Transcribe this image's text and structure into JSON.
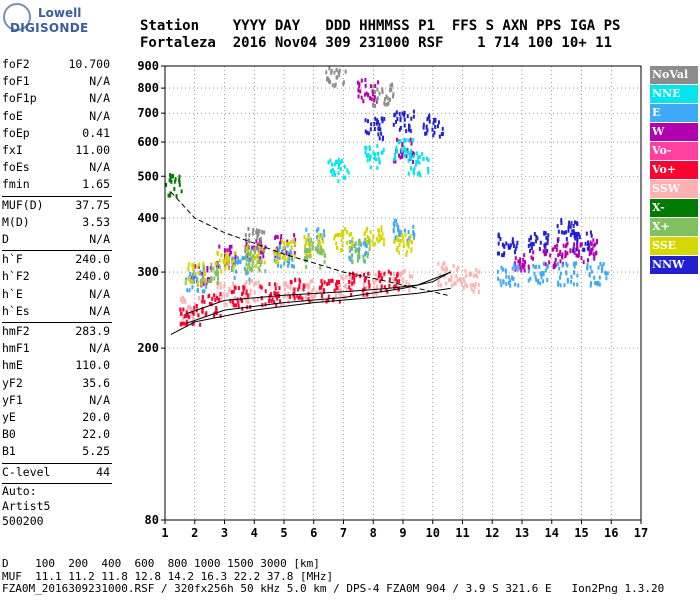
{
  "logo": {
    "line1": "Lowell",
    "line2": "DIGISONDE"
  },
  "header": {
    "labels": "Station    YYYY DAY   DDD HHMMSS P1  FFS S AXN PPS IGA PS",
    "values": "Fortaleza  2016 Nov04 309 231000 RSF    1 714 100 10+ 11"
  },
  "params": {
    "group1": [
      {
        "key": "foF2",
        "val": "10.700"
      },
      {
        "key": "foF1",
        "val": "N/A"
      },
      {
        "key": "foF1p",
        "val": "N/A"
      },
      {
        "key": "foE",
        "val": "N/A"
      },
      {
        "key": "foEp",
        "val": "0.41"
      },
      {
        "key": "fxI",
        "val": "11.00"
      },
      {
        "key": "foEs",
        "val": "N/A"
      },
      {
        "key": "fmin",
        "val": "1.65"
      }
    ],
    "group2": [
      {
        "key": "MUF(D)",
        "val": "37.75"
      },
      {
        "key": "M(D)",
        "val": "3.53"
      },
      {
        "key": "D",
        "val": "N/A"
      }
    ],
    "group3": [
      {
        "key": "h`F",
        "val": "240.0"
      },
      {
        "key": "h`F2",
        "val": "240.0"
      },
      {
        "key": "h`E",
        "val": "N/A"
      },
      {
        "key": "h`Es",
        "val": "N/A"
      }
    ],
    "group4": [
      {
        "key": "hmF2",
        "val": "283.9"
      },
      {
        "key": "hmF1",
        "val": "N/A"
      },
      {
        "key": "hmE",
        "val": "110.0"
      },
      {
        "key": "yF2",
        "val": "35.6"
      },
      {
        "key": "yF1",
        "val": "N/A"
      },
      {
        "key": "yE",
        "val": "20.0"
      },
      {
        "key": "B0",
        "val": "22.0"
      },
      {
        "key": "B1",
        "val": "5.25"
      }
    ],
    "clevel": {
      "key": "C-level",
      "val": "44"
    }
  },
  "auto": {
    "line1": "Auto:",
    "line2": "Artist5",
    "line3": "500200"
  },
  "legend": [
    {
      "label": "NoVal",
      "color": "#8c8c8c"
    },
    {
      "label": "NNE",
      "color": "#00e5ee"
    },
    {
      "label": "E",
      "color": "#3fa9f5"
    },
    {
      "label": "W",
      "color": "#b000b0"
    },
    {
      "label": "Vo-",
      "color": "#ff40a0"
    },
    {
      "label": "Vo+",
      "color": "#ff0030"
    },
    {
      "label": "SSW",
      "color": "#ffb0b0"
    },
    {
      "label": "X-",
      "color": "#007a00"
    },
    {
      "label": "X+",
      "color": "#80c060"
    },
    {
      "label": "SSE",
      "color": "#d6d600"
    },
    {
      "label": "NNW",
      "color": "#2020d0"
    }
  ],
  "footer": {
    "line1": "D    100  200  400  600  800 1000 1500 3000 [km]",
    "line2": "MUF  11.1 11.2 11.8 12.8 14.2 16.3 22.2 37.8 [MHz]",
    "line3": "FZA0M_2016309231000.RSF / 320fx256h 50 kHz 5.0 km / DPS-4 FZA0M 904 / 3.9 S 321.6 E   Ion2Png 1.3.20"
  },
  "chart_data": {
    "type": "scatter",
    "xlim": [
      1,
      17
    ],
    "ylim": [
      80,
      900
    ],
    "y_scale": "log",
    "x_ticks": [
      1,
      2,
      3,
      4,
      5,
      6,
      7,
      8,
      9,
      10,
      11,
      12,
      13,
      14,
      15,
      16,
      17
    ],
    "y_ticks": [
      80,
      200,
      300,
      400,
      500,
      600,
      700,
      800,
      900
    ],
    "grid": true,
    "legend_position": "right",
    "series": [
      {
        "name": "SSW",
        "color": "#ffb0b0",
        "x": [
          1.8,
          3,
          4,
          5,
          6,
          7,
          8,
          9,
          10.5,
          11.2
        ],
        "y": [
          250,
          270,
          275,
          270,
          275,
          280,
          285,
          290,
          300,
          290
        ]
      },
      {
        "name": "Vo+",
        "color": "#ff0030",
        "x": [
          1.8,
          2.5,
          3.5,
          4.5,
          5.5,
          6.5,
          7.5,
          8.5
        ],
        "y": [
          240,
          255,
          265,
          270,
          275,
          275,
          285,
          290
        ]
      },
      {
        "name": "W",
        "color": "#b000b0",
        "x": [
          2.2,
          3,
          4,
          5,
          7.8,
          9,
          13,
          14,
          14.5,
          15.2
        ],
        "y": [
          300,
          330,
          340,
          350,
          800,
          580,
          320,
          330,
          350,
          340
        ]
      },
      {
        "name": "E",
        "color": "#3fa9f5",
        "x": [
          2,
          3.5,
          5,
          6,
          7.5,
          9,
          12.5,
          13.5,
          14.5,
          15.5
        ],
        "y": [
          290,
          310,
          330,
          360,
          340,
          380,
          300,
          300,
          300,
          300
        ]
      },
      {
        "name": "NNE",
        "color": "#00e5ee",
        "x": [
          6.8,
          8,
          9,
          9.5
        ],
        "y": [
          520,
          560,
          580,
          540
        ]
      },
      {
        "name": "SSE",
        "color": "#d6d600",
        "x": [
          2,
          3,
          4,
          5,
          6,
          7,
          8,
          9
        ],
        "y": [
          300,
          320,
          330,
          340,
          350,
          360,
          370,
          350
        ]
      },
      {
        "name": "NNW",
        "color": "#2020d0",
        "x": [
          8,
          9,
          10,
          12.5,
          13.5,
          14.5,
          15
        ],
        "y": [
          650,
          680,
          660,
          350,
          360,
          380,
          360
        ]
      },
      {
        "name": "X+",
        "color": "#80c060",
        "x": [
          2.5,
          4,
          6,
          7.5
        ],
        "y": [
          300,
          320,
          330,
          340
        ]
      },
      {
        "name": "X-",
        "color": "#007a00",
        "x": [
          1.2
        ],
        "y": [
          480
        ]
      },
      {
        "name": "NoVal",
        "color": "#8c8c8c",
        "x": [
          4,
          6.7,
          8.3
        ],
        "y": [
          360,
          870,
          780
        ]
      }
    ]
  }
}
